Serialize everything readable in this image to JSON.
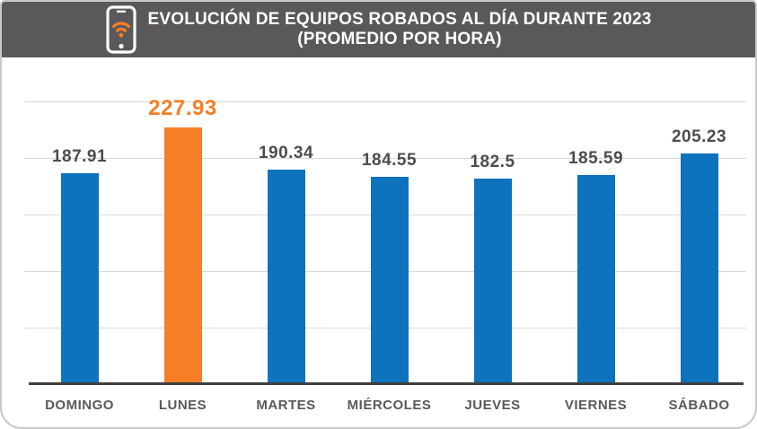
{
  "header": {
    "icon": "phone-wifi-icon"
  },
  "chart_data": {
    "type": "bar",
    "title": "EVOLUCIÓN DE EQUIPOS ROBADOS AL DÍA DURANTE 2023",
    "subtitle": "(PROMEDIO POR HORA)",
    "categories": [
      "DOMINGO",
      "LUNES",
      "MARTES",
      "MIÉRCOLES",
      "JUEVES",
      "VIERNES",
      "SÁBADO"
    ],
    "values": [
      187.91,
      227.93,
      190.34,
      184.55,
      182.5,
      185.59,
      205.23
    ],
    "value_labels": [
      "187.91",
      "227.93",
      "190.34",
      "184.55",
      "182.5",
      "185.59",
      "205.23"
    ],
    "highlight_index": 1,
    "xlabel": "",
    "ylabel": "",
    "ylim": [
      0,
      290
    ],
    "grid_interval": 50,
    "grid_labels_visible": false,
    "legend": "none",
    "colors": {
      "bar": "#0e72bd",
      "highlight_bar": "#f57e27",
      "value_label": "#4d4d4d",
      "highlight_value_label": "#f57e27",
      "header_background": "#5a585a",
      "header_text": "#ffffff",
      "gridline": "#d9d9d9",
      "axis_line": "#404040",
      "day_label": "#595959",
      "card_border": "#c9c9c9"
    }
  }
}
